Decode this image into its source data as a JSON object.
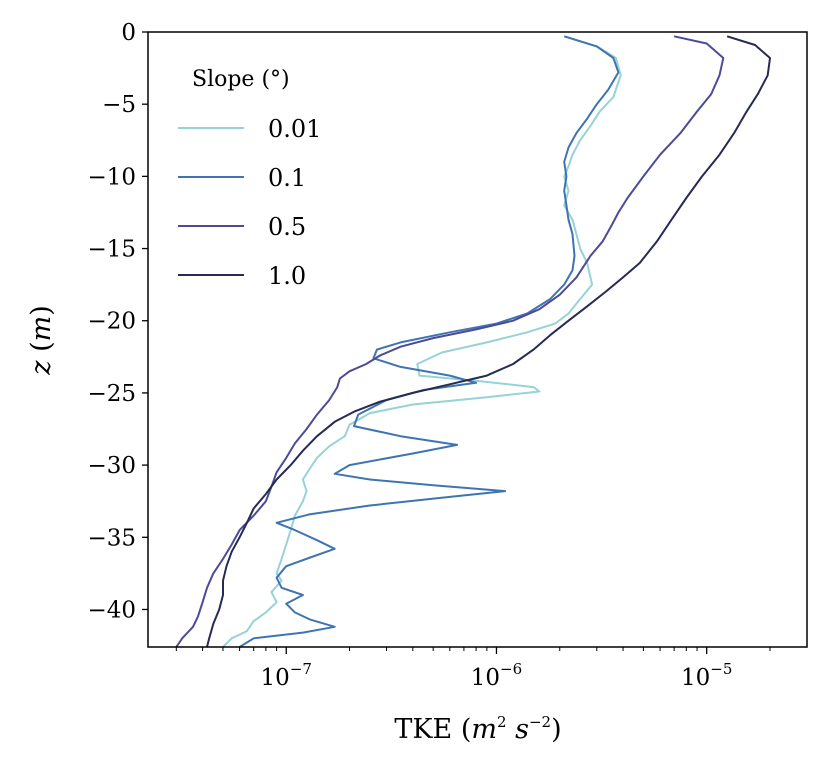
{
  "chart_data": {
    "type": "line",
    "xlabel": "TKE (m² s⁻²)",
    "ylabel": "z (m)",
    "xscale": "log",
    "xlim": [
      2.2e-08,
      3e-05
    ],
    "ylim": [
      -42.6,
      0
    ],
    "grid": false,
    "x_ticks": [
      {
        "value": 1e-07,
        "base": "10",
        "exp": "−7"
      },
      {
        "value": 1e-06,
        "base": "10",
        "exp": "−6"
      },
      {
        "value": 1e-05,
        "base": "10",
        "exp": "−5"
      }
    ],
    "y_ticks": [
      {
        "value": 0,
        "label": "0"
      },
      {
        "value": -5,
        "label": "−5"
      },
      {
        "value": -10,
        "label": "−10"
      },
      {
        "value": -15,
        "label": "−15"
      },
      {
        "value": -20,
        "label": "−20"
      },
      {
        "value": -25,
        "label": "−25"
      },
      {
        "value": -30,
        "label": "−30"
      },
      {
        "value": -35,
        "label": "−35"
      },
      {
        "value": -40,
        "label": "−40"
      }
    ],
    "legend": {
      "title": "Slope (°)",
      "position": "top-left"
    },
    "series": [
      {
        "name": "0.01",
        "color": "#96d2d8",
        "points": [
          [
            2.1e-06,
            -0.3
          ],
          [
            3e-06,
            -1.0
          ],
          [
            3.7e-06,
            -1.8
          ],
          [
            3.9e-06,
            -3.0
          ],
          [
            3.6e-06,
            -4.5
          ],
          [
            3.1e-06,
            -5.5
          ],
          [
            2.8e-06,
            -6.5
          ],
          [
            2.5e-06,
            -7.5
          ],
          [
            2.3e-06,
            -8.5
          ],
          [
            2.2e-06,
            -9.3
          ],
          [
            2.1e-06,
            -10.0
          ],
          [
            2.2e-06,
            -11.0
          ],
          [
            2.1e-06,
            -12.0
          ],
          [
            2.3e-06,
            -13.0
          ],
          [
            2.4e-06,
            -14.0
          ],
          [
            2.5e-06,
            -15.0
          ],
          [
            2.7e-06,
            -16.0
          ],
          [
            2.85e-06,
            -17.5
          ],
          [
            2.5e-06,
            -18.5
          ],
          [
            2.2e-06,
            -19.5
          ],
          [
            1.9e-06,
            -20.2
          ],
          [
            1.4e-06,
            -20.8
          ],
          [
            9e-07,
            -21.5
          ],
          [
            5.5e-07,
            -22.2
          ],
          [
            4.2e-07,
            -23.0
          ],
          [
            4.3e-07,
            -23.8
          ],
          [
            8.5e-07,
            -24.2
          ],
          [
            1.5e-06,
            -24.6
          ],
          [
            1.6e-06,
            -24.9
          ],
          [
            9e-07,
            -25.3
          ],
          [
            4e-07,
            -25.8
          ],
          [
            2.5e-07,
            -26.4
          ],
          [
            2e-07,
            -27.2
          ],
          [
            1.9e-07,
            -28.0
          ],
          [
            1.6e-07,
            -28.7
          ],
          [
            1.4e-07,
            -29.5
          ],
          [
            1.3e-07,
            -30.2
          ],
          [
            1.2e-07,
            -31.0
          ],
          [
            1.25e-07,
            -31.8
          ],
          [
            1.2e-07,
            -32.5
          ],
          [
            1.1e-07,
            -33.5
          ],
          [
            1.05e-07,
            -34.5
          ],
          [
            1e-07,
            -35.5
          ],
          [
            9.5e-08,
            -36.5
          ],
          [
            9e-08,
            -37.5
          ],
          [
            9.5e-08,
            -38.0
          ],
          [
            8.5e-08,
            -38.8
          ],
          [
            9e-08,
            -39.5
          ],
          [
            8e-08,
            -40.2
          ],
          [
            7e-08,
            -40.8
          ],
          [
            6.5e-08,
            -41.5
          ],
          [
            5.5e-08,
            -42.0
          ],
          [
            5e-08,
            -42.6
          ]
        ]
      },
      {
        "name": "0.1",
        "color": "#3e75b1",
        "points": [
          [
            2.1e-06,
            -0.3
          ],
          [
            3e-06,
            -1.0
          ],
          [
            3.6e-06,
            -1.8
          ],
          [
            3.8e-06,
            -2.8
          ],
          [
            3.4e-06,
            -4.0
          ],
          [
            3e-06,
            -5.0
          ],
          [
            2.7e-06,
            -6.0
          ],
          [
            2.4e-06,
            -7.0
          ],
          [
            2.2e-06,
            -8.0
          ],
          [
            2.1e-06,
            -9.0
          ],
          [
            2.15e-06,
            -10.0
          ],
          [
            2.1e-06,
            -11.0
          ],
          [
            2.15e-06,
            -12.0
          ],
          [
            2.2e-06,
            -13.0
          ],
          [
            2.3e-06,
            -14.0
          ],
          [
            2.35e-06,
            -15.5
          ],
          [
            2.3e-06,
            -16.5
          ],
          [
            2.1e-06,
            -17.5
          ],
          [
            1.8e-06,
            -18.5
          ],
          [
            1.4e-06,
            -19.5
          ],
          [
            1e-06,
            -20.2
          ],
          [
            6e-07,
            -20.8
          ],
          [
            3.5e-07,
            -21.5
          ],
          [
            2.7e-07,
            -22.0
          ],
          [
            2.6e-07,
            -22.6
          ],
          [
            3.5e-07,
            -23.2
          ],
          [
            6e-07,
            -23.8
          ],
          [
            8e-07,
            -24.3
          ],
          [
            4.5e-07,
            -24.8
          ],
          [
            3e-07,
            -25.5
          ],
          [
            2.2e-07,
            -26.5
          ],
          [
            2.1e-07,
            -27.3
          ],
          [
            3.5e-07,
            -28.0
          ],
          [
            6.5e-07,
            -28.6
          ],
          [
            4e-07,
            -29.2
          ],
          [
            2e-07,
            -30.0
          ],
          [
            1.7e-07,
            -30.6
          ],
          [
            2.5e-07,
            -31.0
          ],
          [
            5e-07,
            -31.4
          ],
          [
            1.1e-06,
            -31.8
          ],
          [
            6e-07,
            -32.2
          ],
          [
            2.5e-07,
            -32.8
          ],
          [
            1.3e-07,
            -33.4
          ],
          [
            9e-08,
            -34.0
          ],
          [
            1.1e-07,
            -34.5
          ],
          [
            1.4e-07,
            -35.2
          ],
          [
            1.7e-07,
            -35.8
          ],
          [
            1.3e-07,
            -36.4
          ],
          [
            1e-07,
            -37.0
          ],
          [
            9e-08,
            -37.8
          ],
          [
            9.5e-08,
            -38.5
          ],
          [
            1.2e-07,
            -39.0
          ],
          [
            1e-07,
            -39.6
          ],
          [
            1.1e-07,
            -40.2
          ],
          [
            1.3e-07,
            -40.7
          ],
          [
            1.7e-07,
            -41.2
          ],
          [
            1.2e-07,
            -41.6
          ],
          [
            7e-08,
            -42.0
          ],
          [
            6e-08,
            -42.6
          ]
        ]
      },
      {
        "name": "0.5",
        "color": "#4b4b98",
        "points": [
          [
            7e-06,
            -0.3
          ],
          [
            1e-05,
            -0.8
          ],
          [
            1.2e-05,
            -1.8
          ],
          [
            1.15e-05,
            -3.0
          ],
          [
            1.05e-05,
            -4.3
          ],
          [
            9e-06,
            -5.5
          ],
          [
            7.5e-06,
            -7.0
          ],
          [
            6e-06,
            -8.5
          ],
          [
            5e-06,
            -10.0
          ],
          [
            4.2e-06,
            -11.5
          ],
          [
            3.8e-06,
            -12.5
          ],
          [
            3.5e-06,
            -13.5
          ],
          [
            3.2e-06,
            -14.5
          ],
          [
            2.8e-06,
            -15.5
          ],
          [
            2.4e-06,
            -17.0
          ],
          [
            2e-06,
            -18.2
          ],
          [
            1.6e-06,
            -19.2
          ],
          [
            1.2e-06,
            -20.0
          ],
          [
            8e-07,
            -20.6
          ],
          [
            5e-07,
            -21.2
          ],
          [
            3.5e-07,
            -21.8
          ],
          [
            2.8e-07,
            -22.4
          ],
          [
            2.4e-07,
            -23.0
          ],
          [
            2e-07,
            -23.5
          ],
          [
            1.8e-07,
            -24.0
          ],
          [
            1.75e-07,
            -24.6
          ],
          [
            1.6e-07,
            -25.5
          ],
          [
            1.4e-07,
            -26.5
          ],
          [
            1.25e-07,
            -27.5
          ],
          [
            1.1e-07,
            -28.5
          ],
          [
            1e-07,
            -29.5
          ],
          [
            9e-08,
            -30.5
          ],
          [
            8.5e-08,
            -31.5
          ],
          [
            8e-08,
            -32.5
          ],
          [
            7e-08,
            -33.5
          ],
          [
            6e-08,
            -34.5
          ],
          [
            5.5e-08,
            -35.5
          ],
          [
            5e-08,
            -36.5
          ],
          [
            4.5e-08,
            -37.5
          ],
          [
            4.2e-08,
            -38.5
          ],
          [
            4e-08,
            -39.5
          ],
          [
            3.8e-08,
            -40.5
          ],
          [
            3.6e-08,
            -41.2
          ],
          [
            3.2e-08,
            -42.0
          ],
          [
            3e-08,
            -42.6
          ]
        ]
      },
      {
        "name": "1.0",
        "color": "#272b54",
        "points": [
          [
            1.25e-05,
            -0.3
          ],
          [
            1.7e-05,
            -0.9
          ],
          [
            2e-05,
            -1.8
          ],
          [
            1.95e-05,
            -3.0
          ],
          [
            1.75e-05,
            -4.3
          ],
          [
            1.55e-05,
            -5.5
          ],
          [
            1.35e-05,
            -7.0
          ],
          [
            1.15e-05,
            -8.5
          ],
          [
            9.5e-06,
            -10.0
          ],
          [
            8e-06,
            -11.5
          ],
          [
            6.8e-06,
            -13.0
          ],
          [
            5.8e-06,
            -14.5
          ],
          [
            4.8e-06,
            -16.0
          ],
          [
            4e-06,
            -17.0
          ],
          [
            3.3e-06,
            -18.0
          ],
          [
            2.7e-06,
            -19.0
          ],
          [
            2.2e-06,
            -20.0
          ],
          [
            1.8e-06,
            -21.0
          ],
          [
            1.5e-06,
            -22.0
          ],
          [
            1.2e-06,
            -23.0
          ],
          [
            9e-07,
            -23.8
          ],
          [
            6e-07,
            -24.4
          ],
          [
            4e-07,
            -25.0
          ],
          [
            2.8e-07,
            -25.6
          ],
          [
            2.1e-07,
            -26.3
          ],
          [
            1.7e-07,
            -27.0
          ],
          [
            1.4e-07,
            -28.0
          ],
          [
            1.2e-07,
            -29.0
          ],
          [
            1.05e-07,
            -30.0
          ],
          [
            9e-08,
            -31.0
          ],
          [
            8e-08,
            -32.0
          ],
          [
            7e-08,
            -33.0
          ],
          [
            6.5e-08,
            -34.0
          ],
          [
            6e-08,
            -35.0
          ],
          [
            5.5e-08,
            -36.0
          ],
          [
            5.2e-08,
            -37.0
          ],
          [
            5e-08,
            -38.0
          ],
          [
            5e-08,
            -39.0
          ],
          [
            4.8e-08,
            -40.0
          ],
          [
            4.5e-08,
            -41.0
          ],
          [
            4.3e-08,
            -42.0
          ],
          [
            4.2e-08,
            -42.6
          ]
        ]
      }
    ]
  }
}
